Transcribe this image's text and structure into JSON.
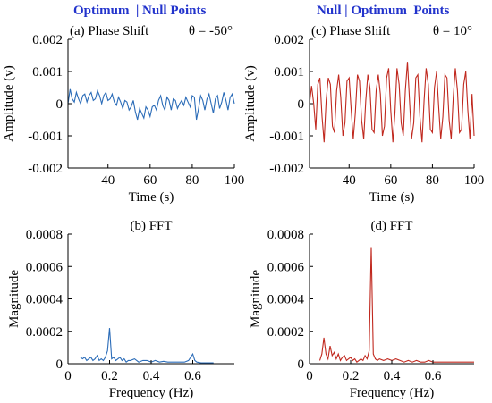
{
  "headers": {
    "left": "Optimum  | Null Points",
    "right": "Null | Optimum  Points"
  },
  "colors": {
    "blue_series": "#2b6cb8",
    "red_series": "#c0281e",
    "axis": "#000000",
    "header": "#2233cc"
  },
  "chart_data": [
    {
      "id": "a",
      "type": "line",
      "title": "(a) Phase Shift",
      "title_symbol": "θ = -50°",
      "xlabel": "Time (s)",
      "ylabel": "Amplitude (v)",
      "xlim": [
        21,
        100
      ],
      "ylim": [
        -0.002,
        0.002
      ],
      "xticks": [
        40,
        60,
        80,
        100
      ],
      "yticks": [
        -0.002,
        -0.001,
        0,
        0.001,
        0.002
      ],
      "ytick_labels": [
        "-0.002",
        "-0.001",
        "0",
        "0.001",
        "0.002"
      ],
      "series": [
        {
          "color": "#2b6cb8",
          "x": [
            21,
            22,
            23,
            24,
            25,
            26,
            27,
            28,
            29,
            30,
            31,
            32,
            33,
            34,
            35,
            36,
            37,
            38,
            39,
            40,
            41,
            42,
            43,
            44,
            45,
            46,
            47,
            48,
            49,
            50,
            51,
            52,
            53,
            54,
            55,
            56,
            57,
            58,
            59,
            60,
            61,
            62,
            63,
            64,
            65,
            66,
            67,
            68,
            69,
            70,
            71,
            72,
            73,
            74,
            75,
            76,
            77,
            78,
            79,
            80,
            81,
            82,
            83,
            84,
            85,
            86,
            87,
            88,
            89,
            90,
            91,
            92,
            93,
            94,
            95,
            96,
            97,
            98,
            99,
            100
          ],
          "y": [
            0,
            0.00045,
            0.00015,
            5e-05,
            0.00035,
            0.00015,
            0.0,
            0.00025,
            0.0003,
            5e-05,
            0.00025,
            0.00035,
            0.0001,
            0.00015,
            0.0004,
            0.00025,
            0.0,
            0.00025,
            0.00035,
            0.0001,
            0.00015,
            0.0003,
            5e-05,
            -5e-05,
            0.0002,
            5e-05,
            -0.00015,
            0.0001,
            5e-05,
            -0.0002,
            -0.0001,
            0.0001,
            -0.00025,
            -0.0005,
            -0.00015,
            -0.0003,
            -0.00045,
            -0.0001,
            -0.0002,
            -0.0004,
            -0.0001,
            -5e-05,
            -0.0002,
            0.0001,
            0.00025,
            -5e-05,
            -0.0002,
            0.0002,
            0.0001,
            -0.0002,
            0.00015,
            0.0001,
            -0.00015,
            0.0,
            0.0001,
            -5e-05,
            0.0002,
            5e-05,
            -0.0001,
            0.00025,
            0.0002,
            -0.0005,
            -0.00015,
            0.00025,
            0.0001,
            -0.0002,
            0.00015,
            0.0003,
            0.0,
            -0.0003,
            0.00015,
            0.00025,
            -0.00015,
            5e-05,
            0.00035,
            0.0001,
            -0.0002,
            0.0002,
            0.0003,
            0.0
          ]
        }
      ]
    },
    {
      "id": "b",
      "type": "line",
      "title": "(b) FFT",
      "xlabel": "Frequency (Hz)",
      "ylabel": "Magnitude",
      "xlim": [
        0,
        0.8
      ],
      "ylim": [
        0,
        0.0008
      ],
      "xticks": [
        0,
        0.2,
        0.4,
        0.6
      ],
      "xtick_labels": [
        "0",
        "0.2",
        "0.4",
        "0.6"
      ],
      "yticks": [
        0,
        0.0002,
        0.0004,
        0.0006,
        0.0008
      ],
      "ytick_labels": [
        "0",
        "0.0002",
        "0.0004",
        "0.0006",
        "0.0008"
      ],
      "series": [
        {
          "color": "#2b6cb8",
          "x": [
            0.06,
            0.07,
            0.08,
            0.09,
            0.1,
            0.11,
            0.12,
            0.13,
            0.14,
            0.15,
            0.16,
            0.17,
            0.18,
            0.19,
            0.2,
            0.21,
            0.22,
            0.23,
            0.24,
            0.25,
            0.26,
            0.27,
            0.28,
            0.29,
            0.3,
            0.32,
            0.34,
            0.36,
            0.38,
            0.4,
            0.42,
            0.44,
            0.46,
            0.48,
            0.5,
            0.52,
            0.54,
            0.56,
            0.58,
            0.6,
            0.61,
            0.62,
            0.64,
            0.66,
            0.68,
            0.7
          ],
          "y": [
            4e-05,
            3e-05,
            4e-05,
            2e-05,
            3e-05,
            4e-05,
            2e-05,
            3e-05,
            5e-05,
            2e-05,
            3e-05,
            2e-05,
            4e-05,
            8e-05,
            0.00022,
            3e-05,
            4e-05,
            2e-05,
            3e-05,
            4e-05,
            2e-05,
            3e-05,
            1e-05,
            2e-05,
            2e-05,
            3e-05,
            1e-05,
            2e-05,
            2e-05,
            1e-05,
            2e-05,
            1e-05,
            1.5e-05,
            1e-05,
            1e-05,
            1e-05,
            1e-05,
            1e-05,
            2e-05,
            6e-05,
            2e-05,
            1e-05,
            5e-06,
            5e-06,
            5e-06,
            5e-06
          ]
        }
      ]
    },
    {
      "id": "c",
      "type": "line",
      "title": "(c) Phase Shift",
      "title_symbol": "θ = 10°",
      "xlabel": "Time (s)",
      "ylabel": "Amplitude (v)",
      "xlim": [
        21,
        100
      ],
      "ylim": [
        -0.002,
        0.002
      ],
      "xticks": [
        40,
        60,
        80,
        100
      ],
      "yticks": [
        -0.002,
        -0.001,
        0,
        0.001,
        0.002
      ],
      "ytick_labels": [
        "-0.002",
        "-0.001",
        "0",
        "0.001",
        "0.002"
      ],
      "series": [
        {
          "color": "#c0281e",
          "x": [
            21,
            22,
            23,
            24,
            25,
            26,
            27,
            28,
            29,
            30,
            31,
            32,
            33,
            34,
            35,
            36,
            37,
            38,
            39,
            40,
            41,
            42,
            43,
            44,
            45,
            46,
            47,
            48,
            49,
            50,
            51,
            52,
            53,
            54,
            55,
            56,
            57,
            58,
            59,
            60,
            61,
            62,
            63,
            64,
            65,
            66,
            67,
            68,
            69,
            70,
            71,
            72,
            73,
            74,
            75,
            76,
            77,
            78,
            79,
            80,
            81,
            82,
            83,
            84,
            85,
            86,
            87,
            88,
            89,
            90,
            91,
            92,
            93,
            94,
            95,
            96,
            97,
            98,
            99,
            100
          ],
          "y": [
            0.0,
            0.00055,
            0.0,
            -0.0008,
            0.0006,
            0.0008,
            -0.0004,
            -0.0012,
            0.0001,
            0.0008,
            0.0006,
            -0.0007,
            -0.0009,
            0.0004,
            0.0009,
            0.0002,
            -0.001,
            -0.0006,
            0.0007,
            0.0008,
            -0.0002,
            -0.0011,
            -0.0003,
            0.0009,
            0.0007,
            -0.0005,
            -0.0011,
            0.0001,
            0.0009,
            0.0005,
            -0.0008,
            -0.0009,
            0.0004,
            0.0009,
            0.0003,
            -0.001,
            -0.0007,
            0.0008,
            0.0011,
            -0.0002,
            -0.0012,
            -0.0003,
            0.0011,
            0.0006,
            -0.0006,
            -0.001,
            0.0004,
            0.0013,
            0.0001,
            -0.0011,
            -0.0006,
            0.0008,
            0.0009,
            -0.0004,
            -0.0012,
            0.0001,
            0.0011,
            0.0006,
            -0.0008,
            -0.0009,
            0.0005,
            0.001,
            -0.0001,
            -0.0011,
            -0.0004,
            0.0009,
            0.0008,
            -0.0005,
            -0.0011,
            0.0002,
            0.0011,
            0.0004,
            -0.0009,
            -0.0008,
            0.0006,
            0.001,
            -0.0002,
            -0.0011,
            0.0003,
            -0.001
          ]
        }
      ]
    },
    {
      "id": "d",
      "type": "line",
      "title": "(d) FFT",
      "xlabel": "Frequency (Hz)",
      "ylabel": "Magnitude",
      "xlim": [
        0,
        0.8
      ],
      "ylim": [
        0,
        0.0008
      ],
      "xticks": [
        0,
        0.2,
        0.4,
        0.6
      ],
      "xtick_labels": [
        "0",
        "0.2",
        "0.4",
        "0.6"
      ],
      "yticks": [
        0,
        0.0002,
        0.0004,
        0.0006,
        0.0008
      ],
      "ytick_labels": [
        "0",
        "0.0002",
        "0.0004",
        "0.0006",
        "0.0008"
      ],
      "series": [
        {
          "color": "#c0281e",
          "x": [
            0.05,
            0.06,
            0.07,
            0.08,
            0.09,
            0.1,
            0.11,
            0.12,
            0.13,
            0.14,
            0.15,
            0.16,
            0.17,
            0.18,
            0.19,
            0.2,
            0.21,
            0.22,
            0.23,
            0.24,
            0.25,
            0.26,
            0.27,
            0.28,
            0.29,
            0.3,
            0.31,
            0.32,
            0.33,
            0.34,
            0.36,
            0.38,
            0.4,
            0.42,
            0.44,
            0.46,
            0.48,
            0.5,
            0.52,
            0.54,
            0.56,
            0.58,
            0.6,
            0.62,
            0.64,
            0.66,
            0.68,
            0.7,
            0.72,
            0.74,
            0.76,
            0.78,
            0.8
          ],
          "y": [
            2e-05,
            6e-05,
            0.00016,
            6e-05,
            3e-05,
            0.00011,
            5e-05,
            7e-05,
            3e-05,
            6e-05,
            2e-05,
            4e-05,
            5e-05,
            2e-05,
            3e-05,
            4e-05,
            2e-05,
            3e-05,
            1e-05,
            2e-05,
            3e-05,
            2e-05,
            5e-05,
            3e-05,
            8e-05,
            0.00072,
            6e-05,
            3e-05,
            2e-05,
            3e-05,
            2e-05,
            3e-05,
            2e-05,
            3e-05,
            2e-05,
            1e-05,
            2e-05,
            1e-05,
            2e-05,
            1e-05,
            1e-05,
            2e-05,
            1e-05,
            1e-05,
            1e-05,
            1e-05,
            1e-05,
            1e-05,
            1e-05,
            1e-05,
            1e-05,
            1e-05,
            1e-05
          ]
        }
      ]
    }
  ]
}
